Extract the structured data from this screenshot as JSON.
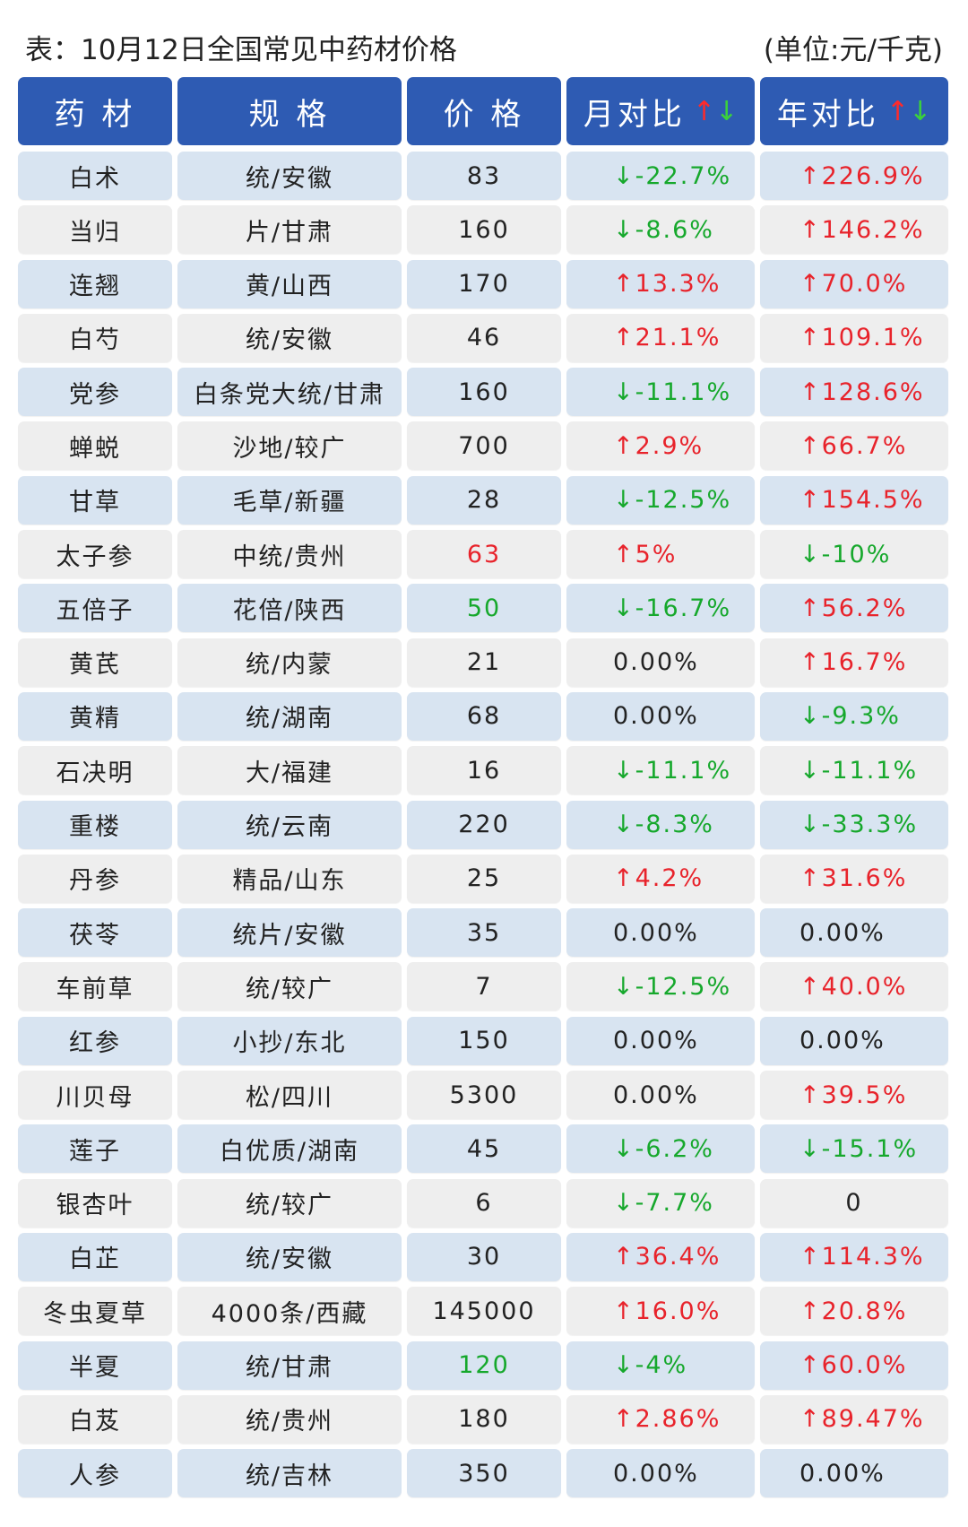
{
  "title": "表：10月12日全国常见中药材价格",
  "unit": "(单位:元/千克)",
  "headers": [
    "药 材",
    "规 格",
    "价 格",
    "月对比",
    "年对比"
  ],
  "header_arrows": {
    "up": "↑",
    "down": "↓"
  },
  "colors": {
    "header_bg": "#2E5BB3",
    "row_odd": "#D8E4F1",
    "row_even": "#EEEEEE",
    "up": "#E8232B",
    "down": "#16A82C"
  },
  "rows": [
    {
      "name": "白术",
      "spec": "统/安徽",
      "price": "83",
      "price_color": "",
      "mom": "↓-22.7%",
      "mom_dir": "down",
      "yoy": "↑226.9%",
      "yoy_dir": "up"
    },
    {
      "name": "当归",
      "spec": "片/甘肃",
      "price": "160",
      "price_color": "",
      "mom": "↓-8.6%",
      "mom_dir": "down",
      "yoy": "↑146.2%",
      "yoy_dir": "up"
    },
    {
      "name": "连翘",
      "spec": "黄/山西",
      "price": "170",
      "price_color": "",
      "mom": "↑13.3%",
      "mom_dir": "up",
      "yoy": "↑70.0%",
      "yoy_dir": "up"
    },
    {
      "name": "白芍",
      "spec": "统/安徽",
      "price": "46",
      "price_color": "",
      "mom": "↑21.1%",
      "mom_dir": "up",
      "yoy": "↑109.1%",
      "yoy_dir": "up"
    },
    {
      "name": "党参",
      "spec": "白条党大统/甘肃",
      "price": "160",
      "price_color": "",
      "mom": "↓-11.1%",
      "mom_dir": "down",
      "yoy": "↑128.6%",
      "yoy_dir": "up"
    },
    {
      "name": "蝉蜕",
      "spec": "沙地/较广",
      "price": "700",
      "price_color": "",
      "mom": "↑2.9%",
      "mom_dir": "up",
      "yoy": "↑66.7%",
      "yoy_dir": "up"
    },
    {
      "name": "甘草",
      "spec": "毛草/新疆",
      "price": "28",
      "price_color": "",
      "mom": "↓-12.5%",
      "mom_dir": "down",
      "yoy": "↑154.5%",
      "yoy_dir": "up"
    },
    {
      "name": "太子参",
      "spec": "中统/贵州",
      "price": "63",
      "price_color": "red",
      "mom": "↑5%",
      "mom_dir": "up",
      "yoy": "↓-10%",
      "yoy_dir": "down"
    },
    {
      "name": "五倍子",
      "spec": "花倍/陕西",
      "price": "50",
      "price_color": "green",
      "mom": "↓-16.7%",
      "mom_dir": "down",
      "yoy": "↑56.2%",
      "yoy_dir": "up"
    },
    {
      "name": "黄芪",
      "spec": "统/内蒙",
      "price": "21",
      "price_color": "",
      "mom": "0.00%",
      "mom_dir": "flat",
      "yoy": "↑16.7%",
      "yoy_dir": "up"
    },
    {
      "name": "黄精",
      "spec": "统/湖南",
      "price": "68",
      "price_color": "",
      "mom": "0.00%",
      "mom_dir": "flat",
      "yoy": "↓-9.3%",
      "yoy_dir": "down"
    },
    {
      "name": "石决明",
      "spec": "大/福建",
      "price": "16",
      "price_color": "",
      "mom": "↓-11.1%",
      "mom_dir": "down",
      "yoy": "↓-11.1%",
      "yoy_dir": "down"
    },
    {
      "name": "重楼",
      "spec": "统/云南",
      "price": "220",
      "price_color": "",
      "mom": "↓-8.3%",
      "mom_dir": "down",
      "yoy": "↓-33.3%",
      "yoy_dir": "down"
    },
    {
      "name": "丹参",
      "spec": "精品/山东",
      "price": "25",
      "price_color": "",
      "mom": "↑4.2%",
      "mom_dir": "up",
      "yoy": "↑31.6%",
      "yoy_dir": "up"
    },
    {
      "name": "茯苓",
      "spec": "统片/安徽",
      "price": "35",
      "price_color": "",
      "mom": "0.00%",
      "mom_dir": "flat",
      "yoy": "0.00%",
      "yoy_dir": "flat"
    },
    {
      "name": "车前草",
      "spec": "统/较广",
      "price": "7",
      "price_color": "",
      "mom": "↓-12.5%",
      "mom_dir": "down",
      "yoy": "↑40.0%",
      "yoy_dir": "up"
    },
    {
      "name": "红参",
      "spec": "小抄/东北",
      "price": "150",
      "price_color": "",
      "mom": "0.00%",
      "mom_dir": "flat",
      "yoy": "0.00%",
      "yoy_dir": "flat"
    },
    {
      "name": "川贝母",
      "spec": "松/四川",
      "price": "5300",
      "price_color": "",
      "mom": "0.00%",
      "mom_dir": "flat",
      "yoy": "↑39.5%",
      "yoy_dir": "up"
    },
    {
      "name": "莲子",
      "spec": "白优质/湖南",
      "price": "45",
      "price_color": "",
      "mom": "↓-6.2%",
      "mom_dir": "down",
      "yoy": "↓-15.1%",
      "yoy_dir": "down"
    },
    {
      "name": "银杏叶",
      "spec": "统/较广",
      "price": "6",
      "price_color": "",
      "mom": "↓-7.7%",
      "mom_dir": "down",
      "yoy": "0",
      "yoy_dir": "zero"
    },
    {
      "name": "白芷",
      "spec": "统/安徽",
      "price": "30",
      "price_color": "",
      "mom": "↑36.4%",
      "mom_dir": "up",
      "yoy": "↑114.3%",
      "yoy_dir": "up"
    },
    {
      "name": "冬虫夏草",
      "spec": "4000条/西藏",
      "price": "145000",
      "price_color": "",
      "mom": "↑16.0%",
      "mom_dir": "up",
      "yoy": "↑20.8%",
      "yoy_dir": "up"
    },
    {
      "name": "半夏",
      "spec": "统/甘肃",
      "price": "120",
      "price_color": "green",
      "mom": "↓-4%",
      "mom_dir": "down",
      "yoy": "↑60.0%",
      "yoy_dir": "up"
    },
    {
      "name": "白芨",
      "spec": "统/贵州",
      "price": "180",
      "price_color": "",
      "mom": "↑2.86%",
      "mom_dir": "up",
      "yoy": "↑89.47%",
      "yoy_dir": "up"
    },
    {
      "name": "人参",
      "spec": "统/吉林",
      "price": "350",
      "price_color": "",
      "mom": "0.00%",
      "mom_dir": "flat",
      "yoy": "0.00%",
      "yoy_dir": "flat"
    }
  ]
}
